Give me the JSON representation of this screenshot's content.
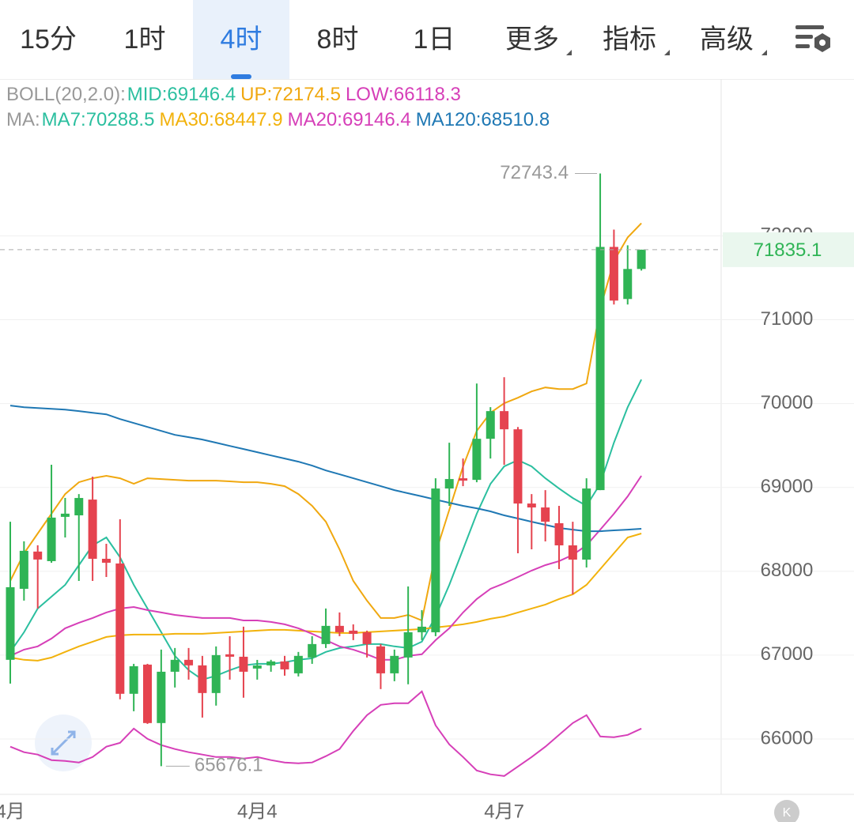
{
  "tabs": [
    "15分",
    "1时",
    "4时",
    "8时",
    "1日",
    "更多",
    "指标",
    "高级"
  ],
  "chart_data": {
    "type": "candlestick",
    "categories": [
      "4月",
      null,
      null,
      null,
      null,
      null,
      null,
      null,
      null,
      null,
      null,
      null,
      null,
      null,
      null,
      null,
      null,
      null,
      "4月4",
      null,
      null,
      null,
      null,
      null,
      null,
      null,
      null,
      null,
      null,
      null,
      null,
      null,
      null,
      null,
      null,
      null,
      "4月7",
      null,
      null,
      null,
      null,
      null,
      null,
      null,
      null,
      null,
      null
    ],
    "open": [
      66944,
      67791,
      68235,
      68121,
      68649,
      68667,
      68855,
      68149,
      68093,
      66539,
      66887,
      66190,
      66802,
      66944,
      66878,
      66548,
      67010,
      66981,
      66840,
      66878,
      66925,
      66783,
      66972,
      67132,
      67349,
      67292,
      67273,
      67104,
      66783,
      66972,
      67273,
      67273,
      68987,
      69109,
      69090,
      69580,
      69910,
      69693,
      68808,
      68761,
      68573,
      68309,
      68139,
      68968,
      71868,
      71247,
      71605
    ],
    "high": [
      68591,
      68357,
      68310,
      69270,
      68875,
      68921,
      69128,
      68328,
      68620,
      66896,
      66896,
      67066,
      67085,
      67085,
      66991,
      67104,
      67226,
      67339,
      66943,
      66944,
      66991,
      67038,
      67226,
      67556,
      67509,
      67367,
      67292,
      67132,
      67066,
      67819,
      67537,
      69109,
      69533,
      69345,
      70239,
      69957,
      70314,
      69721,
      68921,
      68968,
      68780,
      68591,
      69109,
      72743.4,
      72075,
      71887,
      71835.1
    ],
    "low": [
      66661,
      67650,
      67556,
      68102,
      68403,
      67885,
      67885,
      67932,
      66473,
      66331,
      66180,
      65676.1,
      66614,
      66708,
      66256,
      66398,
      66708,
      66492,
      66708,
      66802,
      66755,
      66746,
      66896,
      67085,
      67226,
      67179,
      66972,
      66595,
      66689,
      66652,
      67179,
      67226,
      68780,
      69015,
      69062,
      69345,
      69269,
      68215,
      68262,
      68356,
      68026,
      67725,
      68045,
      68968,
      71181,
      71181,
      71586
    ],
    "close": [
      67810,
      68244,
      68140,
      68640,
      68687,
      68874,
      68149,
      68102,
      66539,
      66868,
      66190,
      66802,
      66944,
      66878,
      66548,
      67000,
      66981,
      66802,
      66877,
      66925,
      66830,
      66991,
      67132,
      67349,
      67273,
      67254,
      67132,
      66783,
      66991,
      67273,
      67339,
      68987,
      69100,
      69081,
      69580,
      69910,
      69693,
      68808,
      68761,
      68591,
      68309,
      68139,
      68987,
      71868,
      71228,
      71605,
      71835.1
    ],
    "up_color": "#2fb455",
    "down_color": "#e5434f",
    "ylim": [
      65340,
      73870
    ],
    "yticks": [
      66000,
      67000,
      68000,
      69000,
      70000,
      71000,
      72000
    ],
    "grid": true,
    "indicator_groups": [
      {
        "label": "BOLL(20,2.0):",
        "series": [
          {
            "name": "MID:69146.4",
            "color": "#2bbf9f"
          },
          {
            "name": "UP:72174.5",
            "color": "#f0a810",
            "values": [
              67885,
              68215,
              68450,
              68686,
              68921,
              69062,
              69109,
              69138,
              69109,
              69043,
              69109,
              69100,
              69090,
              69081,
              69081,
              69081,
              69072,
              69062,
              69062,
              69043,
              69015,
              68921,
              68780,
              68591,
              68262,
              67885,
              67650,
              67443,
              67443,
              67480,
              67414,
              68215,
              68733,
              69250,
              69674,
              69891,
              70004,
              70070,
              70145,
              70192,
              70173,
              70173,
              70239,
              71134,
              71699,
              71981,
              72151
            ]
          },
          {
            "name": "LOW:66118.3",
            "color": "#d63fb8",
            "values": [
              65908,
              65842,
              65814,
              65748,
              65738,
              65720,
              65785,
              65908,
              65955,
              66124,
              66002,
              65927,
              65880,
              65842,
              65814,
              65785,
              65785,
              65767,
              65785,
              65748,
              65720,
              65710,
              65720,
              65795,
              65880,
              66096,
              66284,
              66407,
              66426,
              66426,
              66567,
              66162,
              65936,
              65785,
              65625,
              65578,
              65559,
              65672,
              65785,
              65908,
              66049,
              66190,
              66284,
              66030,
              66021,
              66049,
              66124
            ]
          }
        ]
      },
      {
        "label": "MA:",
        "series": [
          {
            "name": "MA7:70288.5",
            "color": "#2bbf9f",
            "values": [
              67038,
              67273,
              67556,
              67697,
              67838,
              68073,
              68309,
              68403,
              68168,
              67838,
              67556,
              67273,
              66991,
              66821,
              66708,
              66755,
              66821,
              66878,
              66896,
              66896,
              66915,
              66944,
              66962,
              67038,
              67085,
              67104,
              67132,
              67132,
              67104,
              67085,
              67160,
              67461,
              67838,
              68262,
              68686,
              69043,
              69251,
              69326,
              69251,
              69109,
              68987,
              68874,
              68780,
              69043,
              69533,
              69957,
              70286
            ]
          },
          {
            "name": "MA30:68447.9",
            "color": "#f2b20c",
            "values": [
              66972,
              66944,
              66934,
              66972,
              67038,
              67104,
              67160,
              67217,
              67236,
              67245,
              67245,
              67245,
              67254,
              67254,
              67254,
              67264,
              67273,
              67283,
              67292,
              67301,
              67301,
              67292,
              67283,
              67273,
              67264,
              67264,
              67273,
              67283,
              67292,
              67301,
              67311,
              67330,
              67348,
              67367,
              67396,
              67433,
              67461,
              67509,
              67556,
              67603,
              67669,
              67725,
              67838,
              68026,
              68215,
              68403,
              68450
            ]
          },
          {
            "name": "MA20:69146.4",
            "color": "#d63fb8",
            "values": [
              66991,
              67066,
              67104,
              67198,
              67320,
              67386,
              67443,
              67509,
              67556,
              67574,
              67537,
              67509,
              67480,
              67461,
              67443,
              67443,
              67443,
              67414,
              67414,
              67396,
              67367,
              67320,
              67254,
              67179,
              67104,
              67066,
              67010,
              66944,
              66944,
              66991,
              67010,
              67179,
              67320,
              67509,
              67669,
              67791,
              67857,
              67932,
              68008,
              68073,
              68121,
              68196,
              68309,
              68497,
              68686,
              68893,
              69138
            ]
          },
          {
            "name": "MA120:68510.8",
            "color": "#1f78b4",
            "values": [
              69976,
              69957,
              69947,
              69938,
              69928,
              69910,
              69891,
              69872,
              69815,
              69768,
              69721,
              69674,
              69627,
              69599,
              69571,
              69533,
              69495,
              69458,
              69420,
              69382,
              69345,
              69307,
              69260,
              69203,
              69156,
              69109,
              69062,
              69015,
              68968,
              68930,
              68893,
              68855,
              68817,
              68780,
              68751,
              68714,
              68667,
              68629,
              68591,
              68554,
              68516,
              68497,
              68478,
              68478,
              68488,
              68497,
              68507
            ]
          }
        ]
      }
    ]
  }
}
